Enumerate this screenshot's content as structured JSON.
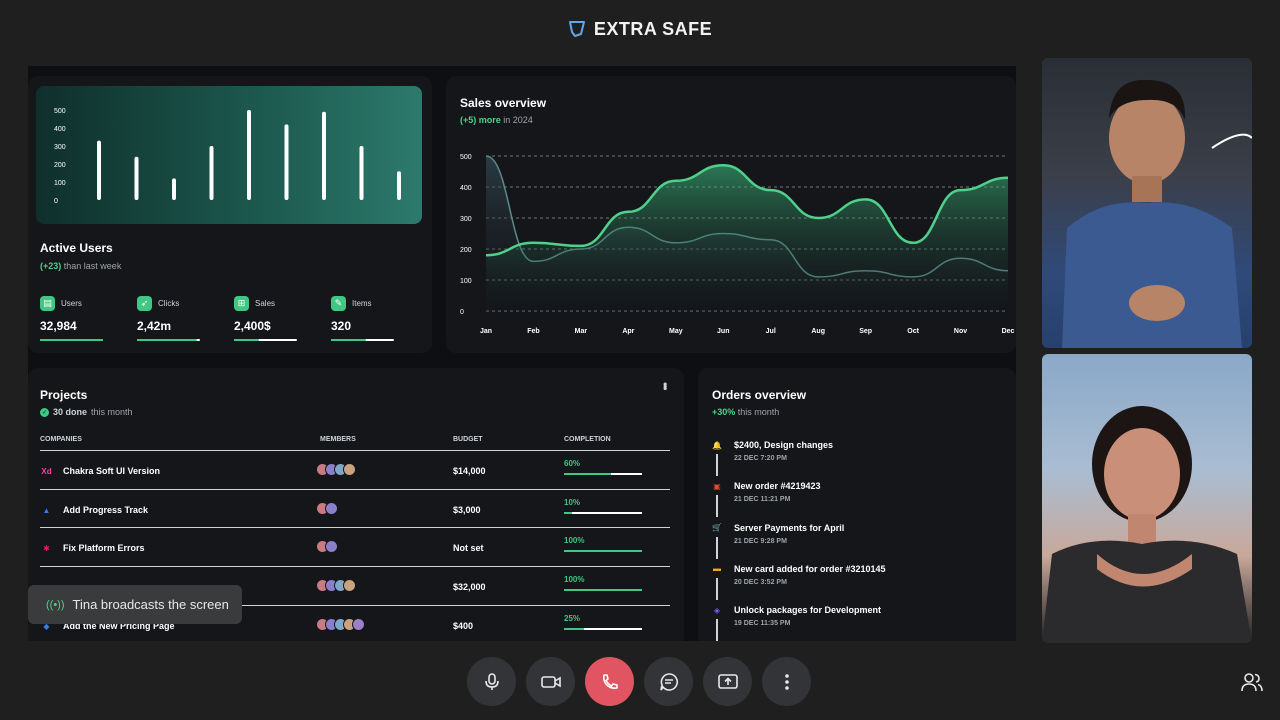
{
  "brand": {
    "name": "EXTRA SAFE",
    "accent": "#4fd18b"
  },
  "active_users": {
    "chart_y_ticks": [
      "500",
      "400",
      "300",
      "200",
      "100",
      "0"
    ],
    "bar_values": [
      330,
      240,
      120,
      300,
      500,
      420,
      490,
      300,
      160
    ],
    "title": "Active Users",
    "delta": "(+23)",
    "delta_text": "than last week",
    "stats": [
      {
        "label": "Users",
        "value": "32,984",
        "icon": "wallet-icon",
        "progress": 1.0
      },
      {
        "label": "Clicks",
        "value": "2,42m",
        "icon": "rocket-icon",
        "progress": 0.95
      },
      {
        "label": "Sales",
        "value": "2,400$",
        "icon": "cart-icon",
        "progress": 0.4
      },
      {
        "label": "Items",
        "value": "320",
        "icon": "wrench-icon",
        "progress": 0.55
      }
    ]
  },
  "sales_overview": {
    "title": "Sales overview",
    "delta": "(+5) more",
    "delta_text": "in 2024"
  },
  "chart_data": {
    "type": "area",
    "categories": [
      "Jan",
      "Feb",
      "Mar",
      "Apr",
      "May",
      "Jun",
      "Jul",
      "Aug",
      "Sep",
      "Oct",
      "Nov",
      "Dec"
    ],
    "y_ticks": [
      "500",
      "400",
      "300",
      "200",
      "100",
      "0"
    ],
    "ylim": [
      0,
      500
    ],
    "grid": true,
    "series": [
      {
        "values": [
          180,
          220,
          210,
          320,
          420,
          470,
          390,
          300,
          360,
          220,
          390,
          430
        ],
        "color": "#4fd18b"
      },
      {
        "values": [
          500,
          160,
          200,
          270,
          220,
          250,
          230,
          110,
          130,
          110,
          170,
          130
        ],
        "color": "#5b8a8a"
      }
    ]
  },
  "projects": {
    "title": "Projects",
    "done": "30 done",
    "done_text": "this month",
    "headers": {
      "companies": "COMPANIES",
      "members": "MEMBERS",
      "budget": "BUDGET",
      "completion": "COMPLETION"
    },
    "rows": [
      {
        "name": "Chakra Soft UI Version",
        "icon": "Xd",
        "icon_color": "#ff3d9a",
        "budget": "$14,000",
        "completion": "60%",
        "progress": 0.6,
        "members": 4
      },
      {
        "name": "Add Progress Track",
        "icon": "▲",
        "icon_color": "#2f80ed",
        "budget": "$3,000",
        "completion": "10%",
        "progress": 0.1,
        "members": 2
      },
      {
        "name": "Fix Platform Errors",
        "icon": "✱",
        "icon_color": "#e01e5a",
        "budget": "Not set",
        "completion": "100%",
        "progress": 1.0,
        "members": 2
      },
      {
        "name": "",
        "icon": "●",
        "icon_color": "#3ec884",
        "budget": "$32,000",
        "completion": "100%",
        "progress": 1.0,
        "members": 4
      },
      {
        "name": "Add the New Pricing Page",
        "icon": "◆",
        "icon_color": "#2f80ed",
        "budget": "$400",
        "completion": "25%",
        "progress": 0.25,
        "members": 5
      }
    ]
  },
  "orders": {
    "title": "Orders overview",
    "delta": "+30%",
    "delta_text": "this month",
    "items": [
      {
        "title": "$2400, Design changes",
        "date": "22 DEC 7:20 PM",
        "icon": "bell-icon",
        "color": "#3ec884",
        "glyph": "🔔"
      },
      {
        "title": "New order #4219423",
        "date": "21 DEC 11:21 PM",
        "icon": "html5-icon",
        "color": "#e44d26",
        "glyph": "▣"
      },
      {
        "title": "Server Payments for April",
        "date": "21 DEC 9:28 PM",
        "icon": "cart-icon",
        "color": "#2f80ed",
        "glyph": "🛒"
      },
      {
        "title": "New card added for order #3210145",
        "date": "20 DEC 3:52 PM",
        "icon": "credit-card-icon",
        "color": "#f5a623",
        "glyph": "▬"
      },
      {
        "title": "Unlock packages for Development",
        "date": "19 DEC 11:35 PM",
        "icon": "dropbox-icon",
        "color": "#7b61ff",
        "glyph": "◈"
      }
    ]
  },
  "toast": {
    "text": "Tina broadcasts the screen"
  },
  "controls": [
    "microphone-icon",
    "camera-icon",
    "end-call-icon",
    "chat-icon",
    "share-screen-icon",
    "more-icon"
  ]
}
